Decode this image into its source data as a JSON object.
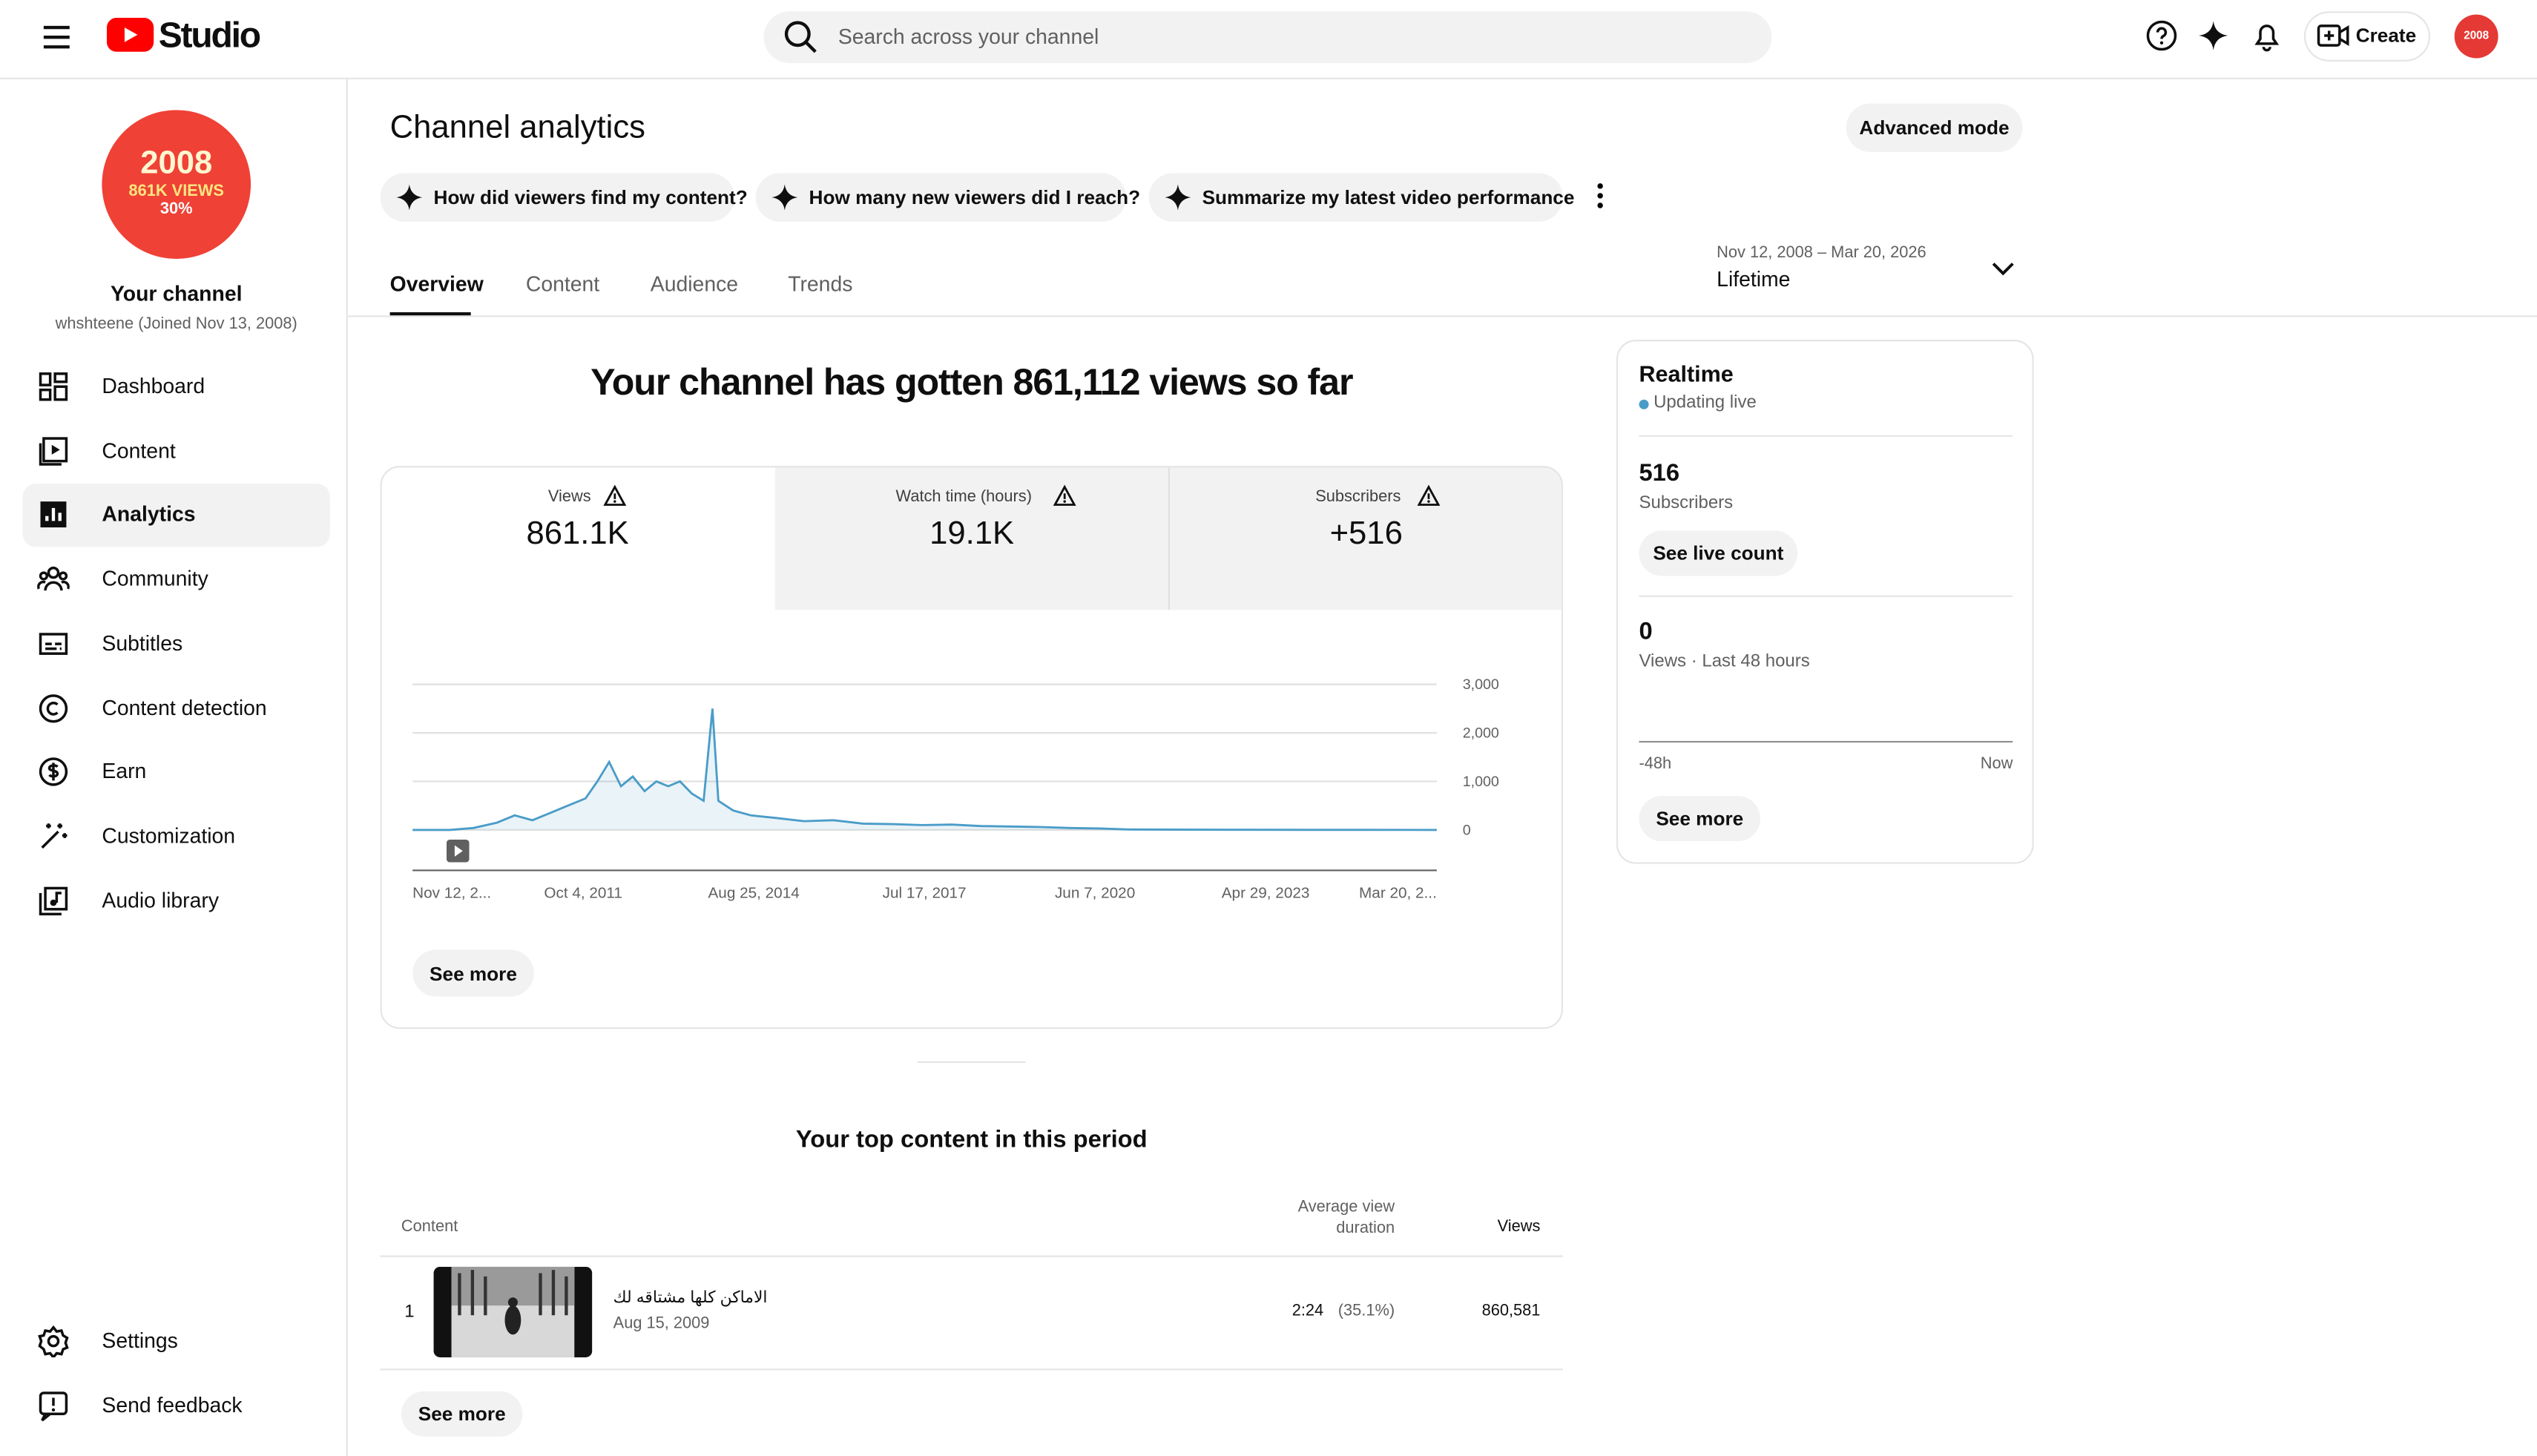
{
  "header": {
    "logo": "Studio",
    "search_placeholder": "Search across your channel",
    "create": "Create",
    "avatar_text": "2008"
  },
  "sidebar": {
    "avatar": {
      "line1": "2008",
      "line2": "861K VIEWS",
      "line3": "30%"
    },
    "channel_name": "Your channel",
    "channel_meta": "whshteene (Joined Nov 13, 2008)",
    "nav": [
      "Dashboard",
      "Content",
      "Analytics",
      "Community",
      "Subtitles",
      "Content detection",
      "Earn",
      "Customization",
      "Audio library"
    ],
    "footer": [
      "Settings",
      "Send feedback"
    ]
  },
  "page": {
    "title": "Channel analytics",
    "advanced": "Advanced mode",
    "prompts": [
      "How did viewers find my content?",
      "How many new viewers did I reach?",
      "Summarize my latest video performance"
    ],
    "tabs": [
      "Overview",
      "Content",
      "Audience",
      "Trends"
    ],
    "date_range": "Nov 12, 2008 – Mar 20, 2026",
    "period": "Lifetime"
  },
  "overview": {
    "headline": "Your channel has gotten 861,112 views so far",
    "metrics": [
      {
        "label": "Views",
        "value": "861.1K"
      },
      {
        "label": "Watch time (hours)",
        "value": "19.1K"
      },
      {
        "label": "Subscribers",
        "value": "+516"
      }
    ],
    "see_more": "See more"
  },
  "chart_data": {
    "type": "line",
    "color": "#4a9cc8",
    "x": [
      2008.87,
      2009.5,
      2009.9,
      2010.3,
      2010.6,
      2010.9,
      2011.2,
      2011.5,
      2011.8,
      2012.0,
      2012.2,
      2012.4,
      2012.6,
      2012.8,
      2013.0,
      2013.2,
      2013.4,
      2013.6,
      2013.8,
      2013.95,
      2014.05,
      2014.3,
      2014.6,
      2015.0,
      2015.5,
      2016.0,
      2016.5,
      2017.0,
      2017.5,
      2018.0,
      2018.5,
      2019.0,
      2019.5,
      2020.0,
      2020.5,
      2021.0,
      2022.0,
      2023.0,
      2024.0,
      2025.0,
      2026.22
    ],
    "values": [
      0,
      0,
      40,
      150,
      300,
      200,
      350,
      500,
      650,
      1000,
      1400,
      900,
      1100,
      800,
      1000,
      900,
      1000,
      750,
      600,
      2500,
      600,
      400,
      300,
      250,
      180,
      200,
      130,
      120,
      100,
      110,
      80,
      70,
      60,
      40,
      30,
      10,
      5,
      3,
      2,
      1,
      0
    ],
    "xlim": [
      2008.87,
      2026.22
    ],
    "xticks": [
      {
        "value": 2008.87,
        "label": "Nov 12, 2..."
      },
      {
        "value": 2011.76,
        "label": "Oct 4, 2011"
      },
      {
        "value": 2014.65,
        "label": "Aug 25, 2014"
      },
      {
        "value": 2017.54,
        "label": "Jul 17, 2017"
      },
      {
        "value": 2020.43,
        "label": "Jun 7, 2020"
      },
      {
        "value": 2023.32,
        "label": "Apr 29, 2023"
      },
      {
        "value": 2026.22,
        "label": "Mar 20, 2..."
      }
    ],
    "ylim": [
      0,
      3000
    ],
    "yticks": [
      0,
      {
        "value": 1000,
        "label": "1,000"
      },
      {
        "value": 2000,
        "label": "2,000"
      },
      {
        "value": 3000,
        "label": "3,000"
      }
    ],
    "grid": true
  },
  "realtime": {
    "title": "Realtime",
    "status": "Updating live",
    "subs_value": "516",
    "subs_label": "Subscribers",
    "live_count": "See live count",
    "views_value": "0",
    "views_label": "Views · Last 48 hours",
    "axis_start": "-48h",
    "axis_end": "Now",
    "see_more": "See more"
  },
  "top_content": {
    "title": "Your top content in this period",
    "columns": [
      "Content",
      "Average view duration",
      "Views"
    ],
    "rows": [
      {
        "rank": "1",
        "title": "الاماكن كلها مشتاقه لك",
        "date": "Aug 15, 2009",
        "duration": "2:24",
        "percent": "(35.1%)",
        "views": "860,581"
      }
    ],
    "see_more": "See more"
  }
}
